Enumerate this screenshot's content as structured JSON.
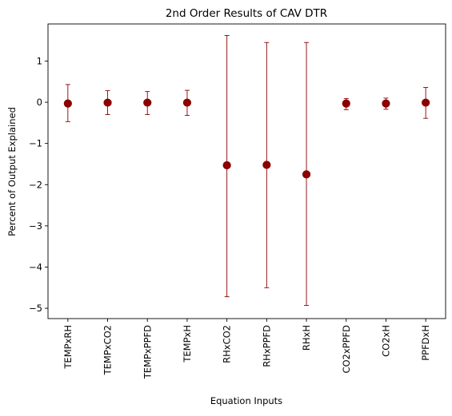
{
  "chart_data": {
    "type": "scatter",
    "title": "2nd Order Results of CAV DTR",
    "xlabel": "Equation Inputs",
    "ylabel": "Percent of Output Explained",
    "ylim": [
      -5.25,
      1.9
    ],
    "yticks": [
      1,
      0,
      -1,
      -2,
      -3,
      -4,
      -5
    ],
    "ytick_labels": [
      "1",
      "0",
      "−1",
      "−2",
      "−3",
      "−4",
      "−5"
    ],
    "grid": false,
    "marker_color": "#8b0000",
    "errorbar_color": "#8b0000",
    "categories": [
      "TEMPxRH",
      "TEMPxCO2",
      "TEMPxPPFD",
      "TEMPxH",
      "RHxCO2",
      "RHxPPFD",
      "RHxH",
      "CO2xPPFD",
      "CO2xH",
      "PPFDxH"
    ],
    "values": [
      -0.03,
      -0.01,
      -0.01,
      -0.01,
      -1.53,
      -1.52,
      -1.75,
      -0.03,
      -0.03,
      -0.01
    ],
    "error_low": [
      -0.47,
      -0.3,
      -0.3,
      -0.32,
      -4.72,
      -4.5,
      -4.93,
      -0.18,
      -0.17,
      -0.39
    ],
    "error_high": [
      0.43,
      0.28,
      0.26,
      0.29,
      1.62,
      1.45,
      1.45,
      0.09,
      0.1,
      0.36
    ]
  }
}
